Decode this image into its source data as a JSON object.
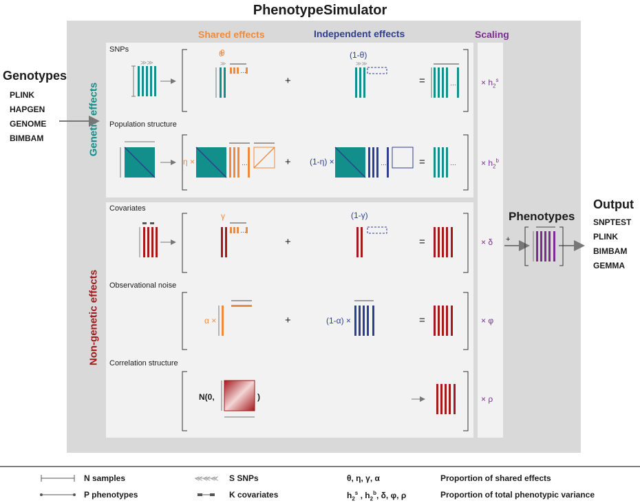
{
  "title": "PhenotypeSimulator",
  "headers": {
    "shared": "Shared effects",
    "independent": "Independent effects",
    "scaling": "Scaling"
  },
  "inputs": {
    "title": "Genotypes",
    "formats": [
      "PLINK",
      "HAPGEN",
      "GENOME",
      "BIMBAM"
    ]
  },
  "groups": {
    "genetic": "Genetic effects",
    "non_genetic": "Non-genetic effects"
  },
  "rows": {
    "snps": {
      "label": "SNPs",
      "shared_param": "θ",
      "indep_param": "(1-θ)",
      "plus": "+",
      "equals": "=",
      "scale": "× h",
      "scale_sub": "2",
      "scale_sup": "s"
    },
    "pop": {
      "label": "Population  structure",
      "shared_param": "η ×",
      "indep_param": "(1-η) ×",
      "plus": "+",
      "equals": "=",
      "scale": "× h",
      "scale_sub": "2",
      "scale_sup": "b"
    },
    "cov": {
      "label": "Covariates",
      "shared_param": "γ",
      "indep_param": "(1-γ)",
      "plus": "+",
      "equals": "=",
      "scale": "× δ"
    },
    "noise": {
      "label": "Observational noise",
      "shared_param": "α ×",
      "indep_param": "(1-α) ×",
      "plus": "+",
      "equals": "=",
      "scale": "× φ"
    },
    "corr": {
      "label": "Correlation structure",
      "normal_open": "N(0,",
      "normal_close": ")",
      "scale": "× ρ"
    }
  },
  "phenotypes": {
    "title": "Phenotypes",
    "plus": "+"
  },
  "output": {
    "title": "Output",
    "formats": [
      "SNPTEST",
      "PLINK",
      "BIMBAM",
      "GEMMA"
    ]
  },
  "legend": {
    "n_samples": "N samples",
    "p_phenotypes": "P phenotypes",
    "s_snps": "S SNPs",
    "k_covariates": "K covariates",
    "params_shared": "θ, η, γ, α",
    "params_var_h": "h",
    "params_var_rest": ", δ, φ, ρ",
    "shared_desc": "Proportion of shared effects",
    "var_desc": "Proportion of total phenotypic variance"
  },
  "colors": {
    "teal": "#128f8a",
    "orange": "#ef8a3c",
    "blue": "#2e3e92",
    "red": "#a3191c",
    "purple": "#7b2d8e",
    "gray": "#888888"
  }
}
